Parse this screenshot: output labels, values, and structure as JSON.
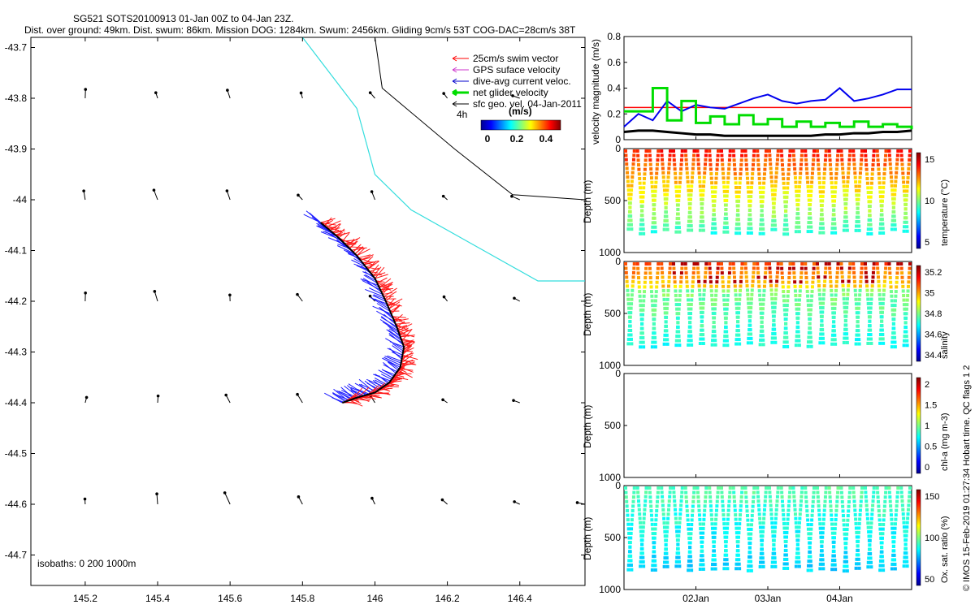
{
  "title_line1": "SG521 SOTS20100913 01-Jan 00Z to 04-Jan 23Z.",
  "title_line2": "Dist. over ground: 49km. Dist. swum: 86km. Mission DOG: 1284km. Swum: 2456km. Gliding 9cm/s 53T COG-DAC=28cm/s 38T",
  "legend": {
    "items": [
      {
        "label": "25cm/s swim vector",
        "color": "#ff0000"
      },
      {
        "label": "GPS suface velocity",
        "color": "#cc33cc"
      },
      {
        "label": "dive-avg current veloc.",
        "color": "#0000cc"
      },
      {
        "label": "net glider velocity",
        "color": "#00dd00"
      },
      {
        "label": "sfc geo. vel. 04-Jan-2011",
        "color": "#000000"
      }
    ],
    "note": "4h",
    "colorbar_title": "(m/s)",
    "colorbar_ticks": [
      "0",
      "0.2",
      "0.4"
    ]
  },
  "map": {
    "x_ticks": [
      "145.2",
      "145.4",
      "145.6",
      "145.8",
      "146",
      "146.2",
      "146.4"
    ],
    "y_ticks": [
      "-43.7",
      "-43.8",
      "-43.9",
      "-44",
      "-44.1",
      "-44.2",
      "-44.3",
      "-44.4",
      "-44.5",
      "-44.6",
      "-44.7"
    ],
    "isobaths_label": "isobaths: 0   200   1000m"
  },
  "velocity_panel": {
    "ylabel": "velocity magnitude (m/s)",
    "y_ticks": [
      "0",
      "0.2",
      "0.4",
      "0.6",
      "0.8"
    ]
  },
  "depth_panels": [
    {
      "ylabel": "Depth (m)",
      "y_ticks": [
        "0",
        "500",
        "1000"
      ],
      "cbar_label": "temperature (°C)",
      "cbar_ticks": [
        "15",
        "10",
        "5"
      ]
    },
    {
      "ylabel": "Depth (m)",
      "y_ticks": [
        "0",
        "500",
        "1000"
      ],
      "cbar_label": "salinity",
      "cbar_ticks": [
        "35.2",
        "35",
        "34.8",
        "34.6",
        "34.4"
      ]
    },
    {
      "ylabel": "Depth (m)",
      "y_ticks": [
        "0",
        "500",
        "1000"
      ],
      "cbar_label": "chl-a (mg m-3)",
      "cbar_ticks": [
        "2",
        "1.5",
        "1",
        "0.5",
        "0"
      ]
    },
    {
      "ylabel": "Depth (m)",
      "y_ticks": [
        "0",
        "500",
        "1000"
      ],
      "cbar_label": "Ox. sat. ratio (%)",
      "cbar_ticks": [
        "150",
        "100",
        "50"
      ]
    }
  ],
  "side_text": "© IMOS 15-Feb-2019 01:27:34 Hobart time. QC flags 1  2",
  "time_ticks": [
    "02Jan",
    "03Jan",
    "04Jan"
  ],
  "chart_data": {
    "type": "scatter",
    "map_track": {
      "xlabel": "",
      "ylabel": "",
      "xlim": [
        145.05,
        146.58
      ],
      "ylim": [
        -44.76,
        -43.68
      ],
      "track_lon": [
        145.85,
        145.9,
        145.95,
        146.0,
        146.03,
        146.06,
        146.08,
        146.07,
        146.04,
        146.0,
        145.95,
        145.91
      ],
      "track_lat": [
        -44.045,
        -44.075,
        -44.11,
        -44.155,
        -44.2,
        -44.25,
        -44.29,
        -44.33,
        -44.36,
        -44.38,
        -44.39,
        -44.4
      ],
      "front_cyan": {
        "lon": [
          145.8,
          145.95,
          146.0,
          146.1,
          146.3,
          146.45,
          146.58
        ],
        "lat": [
          -43.68,
          -43.82,
          -43.95,
          -44.02,
          -44.1,
          -44.16,
          -44.16
        ]
      },
      "contour_black": {
        "lon": [
          146.0,
          146.02,
          146.07,
          146.22,
          146.38,
          146.58
        ],
        "lat": [
          -43.68,
          -43.78,
          -43.81,
          -43.9,
          -43.99,
          -44.0
        ]
      }
    },
    "velocity": {
      "ylim": [
        0,
        0.8
      ],
      "x_days": [
        1.0,
        1.2,
        1.4,
        1.6,
        1.8,
        2.0,
        2.2,
        2.4,
        2.6,
        2.8,
        3.0,
        3.2,
        3.4,
        3.6,
        3.8,
        4.0,
        4.2,
        4.4,
        4.6,
        4.8,
        5.0
      ],
      "series": [
        {
          "name": "dive-avg current veloc.",
          "values": [
            0.1,
            0.2,
            0.15,
            0.3,
            0.22,
            0.27,
            0.25,
            0.24,
            0.28,
            0.32,
            0.35,
            0.3,
            0.28,
            0.3,
            0.31,
            0.4,
            0.3,
            0.32,
            0.35,
            0.39,
            0.39
          ]
        },
        {
          "name": "net glider velocity",
          "values": [
            0.22,
            0.22,
            0.4,
            0.15,
            0.3,
            0.13,
            0.18,
            0.12,
            0.19,
            0.12,
            0.16,
            0.1,
            0.14,
            0.1,
            0.13,
            0.1,
            0.14,
            0.1,
            0.12,
            0.1,
            0.08
          ]
        },
        {
          "name": "sfc geo. vel. 04-Jan-2011",
          "values": [
            0.06,
            0.07,
            0.07,
            0.06,
            0.05,
            0.04,
            0.04,
            0.03,
            0.03,
            0.03,
            0.03,
            0.03,
            0.03,
            0.03,
            0.04,
            0.04,
            0.05,
            0.05,
            0.06,
            0.06,
            0.07
          ]
        }
      ],
      "reference_line": 0.25
    },
    "time_axis": {
      "xlim": [
        1.0,
        5.0
      ],
      "tick_days": [
        2,
        3,
        4
      ],
      "dive_count": 24
    }
  }
}
